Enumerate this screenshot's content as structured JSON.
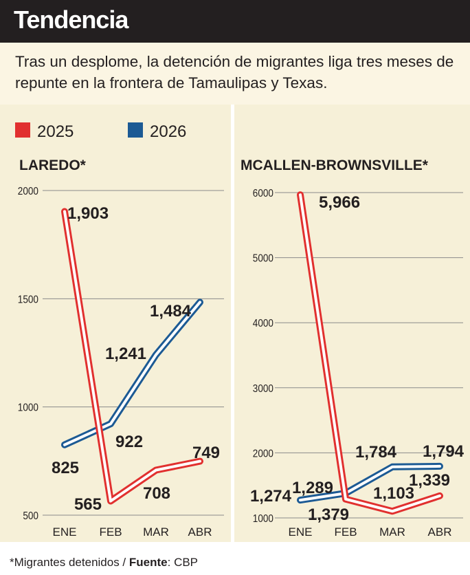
{
  "header": {
    "title": "Tendencia"
  },
  "subtitle": "Tras un desplome, la detención de migrantes liga tres meses de repunte en la frontera de Tamaulipas y Texas.",
  "legend": [
    {
      "label": "2025",
      "color": "#e1302f"
    },
    {
      "label": "2026",
      "color": "#1c5a94"
    }
  ],
  "footer": {
    "note": "*Migrantes detenidos / ",
    "source_label": "Fuente",
    "source_value": ": CBP"
  },
  "chart_data": [
    {
      "type": "line",
      "title": "LAREDO*",
      "categories": [
        "ENE",
        "FEB",
        "MAR",
        "ABR"
      ],
      "yticks": [
        "2000",
        "1500",
        "1000",
        "500"
      ],
      "ylim": [
        500,
        2000
      ],
      "series": [
        {
          "name": "2025",
          "color": "#e1302f",
          "values": [
            1903,
            565,
            708,
            749
          ],
          "labels": [
            "1,903",
            "565",
            "708",
            "749"
          ]
        },
        {
          "name": "2026",
          "color": "#1c5a94",
          "values": [
            825,
            922,
            1241,
            1484
          ],
          "labels": [
            "825",
            "922",
            "1,241",
            "1,484"
          ]
        }
      ]
    },
    {
      "type": "line",
      "title": "MCALLEN-BROWNSVILLE*",
      "categories": [
        "ENE",
        "FEB",
        "MAR",
        "ABR"
      ],
      "yticks": [
        "6000",
        "5000",
        "4000",
        "3000",
        "2000",
        "1000"
      ],
      "ylim": [
        1000,
        6000
      ],
      "series": [
        {
          "name": "2025",
          "color": "#e1302f",
          "values": [
            5966,
            1289,
            1103,
            1339
          ],
          "labels": [
            "5,966",
            "1,289",
            "1,103",
            "1,339"
          ]
        },
        {
          "name": "2026",
          "color": "#1c5a94",
          "values": [
            1274,
            1379,
            1784,
            1794
          ],
          "labels": [
            "1,274",
            "1,379",
            "1,784",
            "1,794"
          ]
        }
      ]
    }
  ]
}
